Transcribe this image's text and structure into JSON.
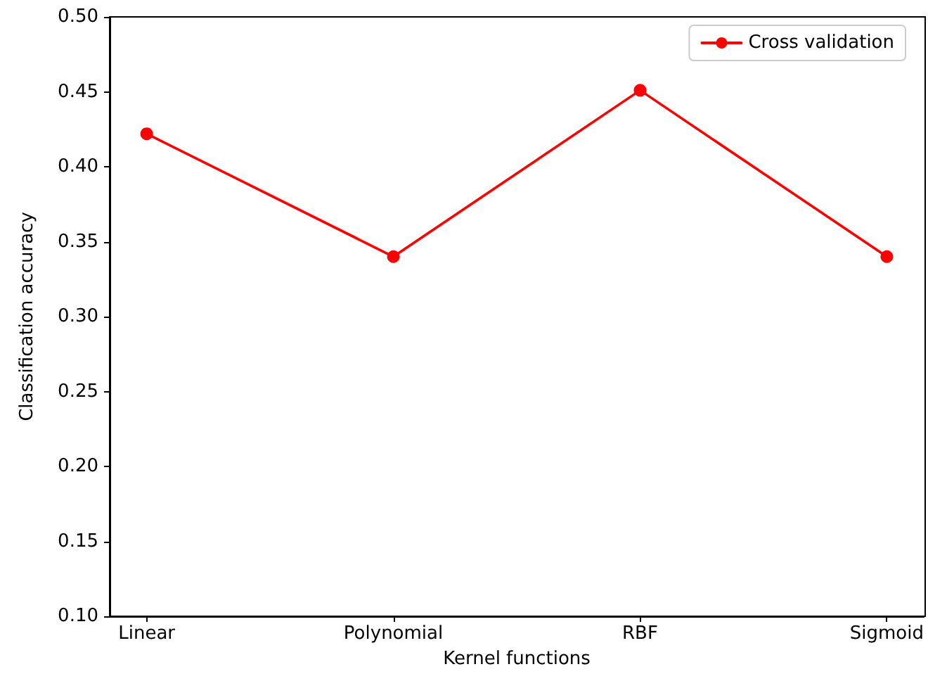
{
  "chart_data": {
    "type": "line",
    "xlabel": "Kernel functions",
    "ylabel": "Classification accuracy",
    "categories": [
      "Linear",
      "Polynomial",
      "RBF",
      "Sigmoid"
    ],
    "series": [
      {
        "name": "Cross validation",
        "color": "#ff0000",
        "values": [
          0.422,
          0.34,
          0.451,
          0.34
        ]
      }
    ],
    "ylim": [
      0.1,
      0.5
    ],
    "yticks": [
      {
        "value": 0.1,
        "label": "0.10"
      },
      0.15,
      {
        "value": 0.2,
        "label": "0.20"
      },
      0.25,
      {
        "value": 0.3,
        "label": "0.30"
      },
      0.35,
      {
        "value": 0.4,
        "label": "0.40"
      },
      0.45,
      {
        "value": 0.5,
        "label": "0.50"
      }
    ],
    "grid": false,
    "legend": "top right",
    "marker": "circle",
    "line_style": "solid"
  }
}
